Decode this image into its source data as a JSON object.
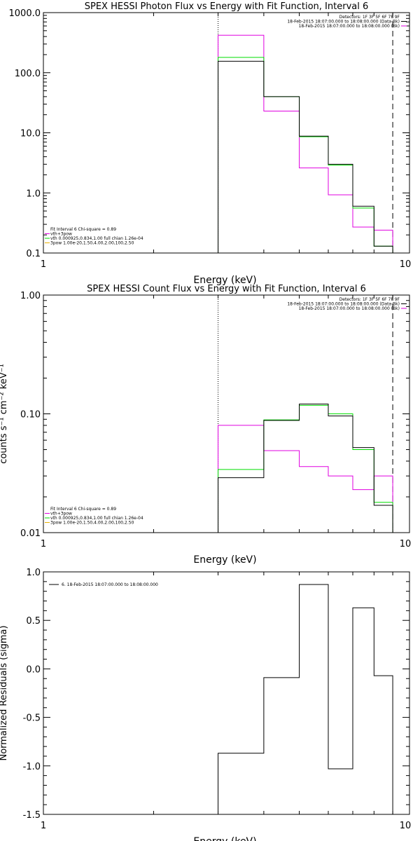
{
  "chart_data": [
    {
      "type": "line",
      "title": "SPEX HESSI Photon Flux vs Energy with Fit Function, Interval 6",
      "xlabel": "Energy (keV)",
      "ylabel": "",
      "xscale": "log",
      "yscale": "log",
      "xlim": [
        1,
        10
      ],
      "ylim": [
        0.1,
        1000
      ],
      "x_ticks": [
        "1",
        "10"
      ],
      "y_ticks": [
        "1000.0",
        "100.0",
        "10.0",
        "1.0",
        "0.1"
      ],
      "vlines": [
        {
          "x": 3.0,
          "style": "dotted"
        },
        {
          "x": 9.0,
          "style": "dashed"
        }
      ],
      "legend_top": [
        "Detectors: 1F 3F 5F 6F 7F 9F",
        "18-Feb-2015 18:07:00.000 to 18:08:00.000 (Data-Bk)",
        "18-Feb-2015 18:07:00.000 to 18:08:00.000 (Bk)"
      ],
      "legend_bottom": [
        "Fit Interval  6   Chi-square = 0.89",
        "vth+3pow",
        "vth 0.000925,0.834,1.00  full chian 1.26e-04",
        "3pow 1.00e-20,1.50,4.00,2.00,100,2.50"
      ],
      "edges": [
        3.0,
        4.0,
        5.0,
        6.0,
        7.0,
        8.0,
        9.0
      ],
      "series": [
        {
          "name": "18-Feb-2015 18:07:00.000 to 18:08:00.000 (Data-Bk)",
          "color": "#000000",
          "values": [
            155,
            40,
            8.8,
            3.0,
            0.6,
            0.13
          ]
        },
        {
          "name": "18-Feb-2015 18:07:00.000 to 18:08:00.000 (Bk)",
          "color": "#e000e0",
          "values": [
            420,
            23,
            2.6,
            0.93,
            0.27,
            0.24
          ]
        },
        {
          "name": "vth 0.000925,0.834,1.00  full chian 1.26e-04",
          "color": "#00dd00",
          "values": [
            180,
            40,
            8.6,
            2.9,
            0.56,
            0.13
          ]
        }
      ]
    },
    {
      "type": "line",
      "title": "SPEX HESSI Count Flux vs Energy with Fit Function, Interval 6",
      "xlabel": "Energy (keV)",
      "ylabel": "counts s⁻¹ cm⁻² keV⁻¹",
      "xscale": "log",
      "yscale": "log",
      "xlim": [
        1,
        10
      ],
      "ylim": [
        0.01,
        1
      ],
      "x_ticks": [
        "1",
        "10"
      ],
      "y_ticks": [
        "1.00",
        "0.10",
        "0.01"
      ],
      "vlines": [
        {
          "x": 3.0,
          "style": "dotted"
        },
        {
          "x": 9.0,
          "style": "dashed"
        }
      ],
      "legend_top": [
        "Detectors: 1F 3F 5F 6F 7F 9F",
        "18-Feb-2015 18:07:00.000 to 18:08:00.000 (Data-Bk)",
        "18-Feb-2015 18:07:00.000 to 18:08:00.000 (Bk)"
      ],
      "legend_bottom": [
        "Fit Interval  6   Chi-square = 0.89",
        "vth+3pow",
        "vth 0.000925,0.834,1.00  full chian 1.26e-04",
        "3pow 1.00e-20,1.50,4.00,2.00,100,2.50"
      ],
      "edges": [
        3.0,
        4.0,
        5.0,
        6.0,
        7.0,
        8.0,
        9.0
      ],
      "series": [
        {
          "name": "18-Feb-2015 18:07:00.000 to 18:08:00.000 (Data-Bk)",
          "color": "#000000",
          "values": [
            0.029,
            0.088,
            0.121,
            0.096,
            0.052,
            0.017
          ]
        },
        {
          "name": "18-Feb-2015 18:07:00.000 to 18:08:00.000 (Bk)",
          "color": "#e000e0",
          "values": [
            0.08,
            0.049,
            0.036,
            0.03,
            0.023,
            0.03
          ]
        },
        {
          "name": "vth 0.000925,0.834,1.00  full chian 1.26e-04",
          "color": "#00dd00",
          "values": [
            0.034,
            0.089,
            0.118,
            0.1,
            0.05,
            0.018
          ]
        }
      ]
    },
    {
      "type": "line",
      "title": "",
      "xlabel": "Energy (keV)",
      "ylabel": "Normalized Residuals (sigma)",
      "xscale": "log",
      "yscale": "linear",
      "xlim": [
        1,
        10
      ],
      "ylim": [
        -1.5,
        1.0
      ],
      "x_ticks": [
        "1",
        "10"
      ],
      "y_ticks": [
        "1.0",
        "0.5",
        "0.0",
        "-0.5",
        "-1.0",
        "-1.5"
      ],
      "y_tick_values": [
        1.0,
        0.5,
        0.0,
        -0.5,
        -1.0,
        -1.5
      ],
      "vlines": [],
      "legend_top": [
        "6. 18-Feb-2015 18:07:00.000 to 18:08:00.000"
      ],
      "legend_bottom": [],
      "edges": [
        3.0,
        4.0,
        5.0,
        6.0,
        7.0,
        8.0,
        9.0
      ],
      "series": [
        {
          "name": "6. 18-Feb-2015 18:07:00.000 to 18:08:00.000",
          "color": "#000000",
          "values": [
            -0.87,
            -0.09,
            0.87,
            -1.03,
            0.63,
            -0.07
          ]
        }
      ]
    }
  ]
}
